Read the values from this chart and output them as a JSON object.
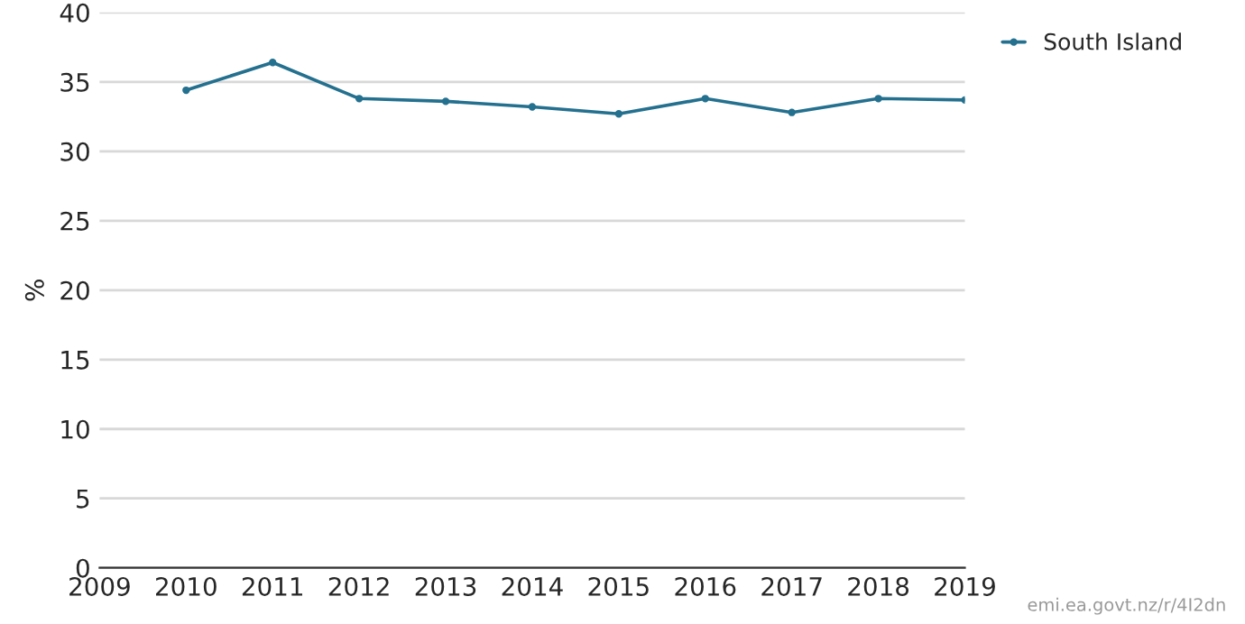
{
  "chart_data": {
    "type": "line",
    "ylabel": "%",
    "x": [
      2010,
      2011,
      2012,
      2013,
      2014,
      2015,
      2016,
      2017,
      2018,
      2019
    ],
    "series": [
      {
        "name": "South Island",
        "color": "#24708f",
        "values": [
          34.4,
          36.4,
          33.8,
          33.6,
          33.2,
          32.7,
          33.8,
          32.8,
          33.8,
          33.7
        ]
      }
    ],
    "xlim": [
      2009,
      2019
    ],
    "xticks": [
      2009,
      2010,
      2011,
      2012,
      2013,
      2014,
      2015,
      2016,
      2017,
      2018,
      2019
    ],
    "ylim": [
      0,
      40
    ],
    "yticks": [
      0,
      5,
      10,
      15,
      20,
      25,
      30,
      35,
      40
    ],
    "grid": "y",
    "legend": "top right",
    "marker": "circle",
    "line_style": "solid",
    "annotations": [
      "emi.ea.govt.nz/r/4I2dn"
    ]
  }
}
